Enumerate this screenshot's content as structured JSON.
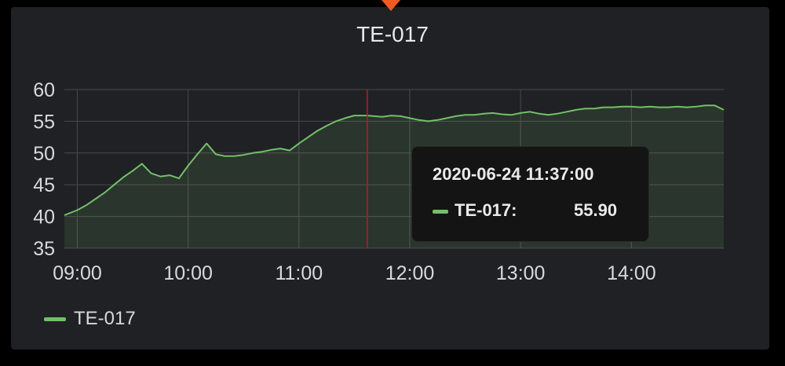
{
  "panel": {
    "title": "TE-017",
    "accent_color": "#f15a22"
  },
  "chart_data": {
    "type": "area",
    "title": "TE-017",
    "xlabel": "",
    "ylabel": "",
    "x_ticks": [
      "09:00",
      "10:00",
      "11:00",
      "12:00",
      "13:00",
      "14:00"
    ],
    "y_ticks": [
      35,
      40,
      45,
      50,
      55,
      60
    ],
    "ylim": [
      35,
      60
    ],
    "xlim": [
      "08:53",
      "14:50"
    ],
    "grid": true,
    "legend_position": "bottom-left",
    "series": [
      {
        "name": "TE-017",
        "color": "#73bf69",
        "x": [
          "08:53",
          "09:00",
          "09:05",
          "09:10",
          "09:15",
          "09:20",
          "09:25",
          "09:30",
          "09:35",
          "09:40",
          "09:45",
          "09:50",
          "09:55",
          "10:00",
          "10:05",
          "10:10",
          "10:13",
          "10:15",
          "10:20",
          "10:25",
          "10:30",
          "10:35",
          "10:40",
          "10:45",
          "10:50",
          "10:55",
          "11:00",
          "11:05",
          "11:10",
          "11:15",
          "11:20",
          "11:25",
          "11:30",
          "11:37",
          "11:45",
          "11:50",
          "11:55",
          "12:00",
          "12:05",
          "12:10",
          "12:15",
          "12:20",
          "12:25",
          "12:30",
          "12:35",
          "12:40",
          "12:45",
          "12:50",
          "12:55",
          "13:00",
          "13:05",
          "13:10",
          "13:15",
          "13:20",
          "13:25",
          "13:30",
          "13:35",
          "13:40",
          "13:45",
          "13:50",
          "13:55",
          "14:00",
          "14:05",
          "14:10",
          "14:15",
          "14:20",
          "14:25",
          "14:30",
          "14:35",
          "14:40",
          "14:45",
          "14:50"
        ],
        "y": [
          40.2,
          41.0,
          41.8,
          42.8,
          43.8,
          45.0,
          46.2,
          47.2,
          48.3,
          46.8,
          46.3,
          46.5,
          46.0,
          48.0,
          49.8,
          51.5,
          50.5,
          49.8,
          49.5,
          49.5,
          49.7,
          50.0,
          50.2,
          50.5,
          50.7,
          50.4,
          51.5,
          52.5,
          53.5,
          54.3,
          55.0,
          55.5,
          55.9,
          55.9,
          55.7,
          55.9,
          55.8,
          55.5,
          55.2,
          55.0,
          55.2,
          55.5,
          55.8,
          56.0,
          56.0,
          56.2,
          56.3,
          56.1,
          56.0,
          56.3,
          56.5,
          56.2,
          56.0,
          56.2,
          56.5,
          56.8,
          57.0,
          57.0,
          57.2,
          57.2,
          57.3,
          57.3,
          57.2,
          57.3,
          57.2,
          57.2,
          57.3,
          57.2,
          57.3,
          57.5,
          57.5,
          56.8
        ]
      }
    ],
    "hover_x": "11:37"
  },
  "tooltip": {
    "timestamp": "2020-06-24 11:37:00",
    "series_label": "TE-017:",
    "value": "55.90"
  },
  "legend": {
    "items": [
      {
        "label": "TE-017",
        "color": "#73bf69"
      }
    ]
  }
}
